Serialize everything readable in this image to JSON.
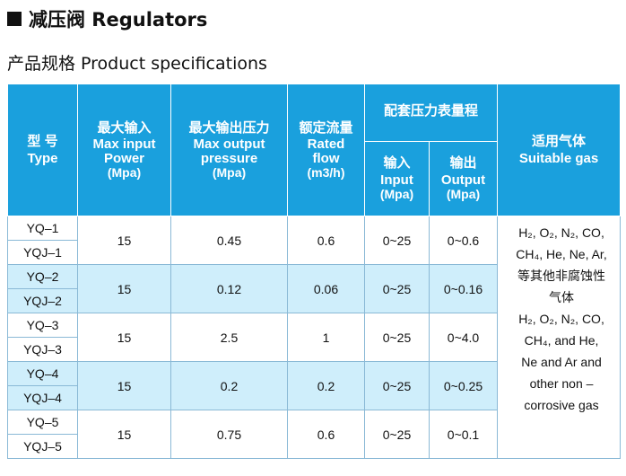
{
  "title": "减压阀 Regulators",
  "subtitle": "产品规格 Product specifications",
  "headers": {
    "type": {
      "cn": "型  号",
      "en": "Type"
    },
    "max_input": {
      "cn": "最大输入",
      "en1": "Max input",
      "en2": "Power",
      "unit": "(Mpa)"
    },
    "max_output": {
      "cn": "最大输出压力",
      "en1": "Max output",
      "en2": "pressure",
      "unit": "(Mpa)"
    },
    "rated_flow": {
      "cn": "额定流量",
      "en1": "Rated",
      "en2": "flow",
      "unit": "(m3/h)"
    },
    "gauge_range": {
      "cn": "配套压力表量程"
    },
    "gauge_input": {
      "cn": "输入",
      "en": "Input",
      "unit": "(Mpa)"
    },
    "gauge_output": {
      "cn": "输出",
      "en": "Output",
      "unit": "(Mpa)"
    },
    "gas": {
      "cn": "适用气体",
      "en": "Suitable gas"
    }
  },
  "rows": [
    {
      "type_a": "YQ–1",
      "type_b": "YQJ–1",
      "max_input": "15",
      "max_output": "0.45",
      "flow": "0.6",
      "in_range": "0~25",
      "out_range": "0~0.6"
    },
    {
      "type_a": "YQ–2",
      "type_b": "YQJ–2",
      "max_input": "15",
      "max_output": "0.12",
      "flow": "0.06",
      "in_range": "0~25",
      "out_range": "0~0.16"
    },
    {
      "type_a": "YQ–3",
      "type_b": "YQJ–3",
      "max_input": "15",
      "max_output": "2.5",
      "flow": "1",
      "in_range": "0~25",
      "out_range": "0~4.0"
    },
    {
      "type_a": "YQ–4",
      "type_b": "YQJ–4",
      "max_input": "15",
      "max_output": "0.2",
      "flow": "0.2",
      "in_range": "0~25",
      "out_range": "0~0.25"
    },
    {
      "type_a": "YQ–5",
      "type_b": "YQJ–5",
      "max_input": "15",
      "max_output": "0.75",
      "flow": "0.6",
      "in_range": "0~25",
      "out_range": "0~0.1"
    }
  ],
  "gas_lines": [
    "H₂, O₂, N₂, CO,",
    "CH₄, He, Ne, Ar,",
    "等其他非腐蚀性",
    "气体",
    "H₂, O₂, N₂, CO,",
    "CH₄, and He,",
    "Ne and Ar and",
    "other non –",
    "corrosive gas"
  ],
  "colors": {
    "header_bg": "#1aa0dd",
    "alt_row_bg": "#cfeefb",
    "border": "#8ab9d6"
  }
}
